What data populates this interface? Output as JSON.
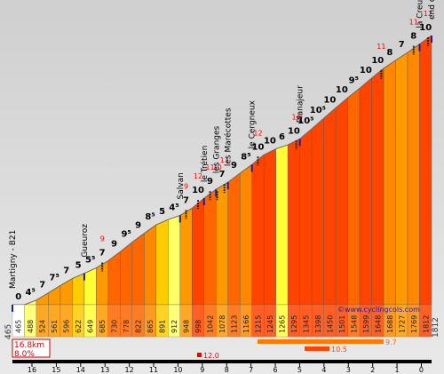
{
  "chart_data": {
    "type": "bar",
    "title": "",
    "xlabel": "",
    "ylabel": "",
    "x_axis": {
      "ticks": [
        "16",
        "15",
        "14",
        "13",
        "12",
        "11",
        "10",
        "9",
        "8",
        "7",
        "6",
        "5",
        "4",
        "3",
        "2",
        "1",
        "0"
      ],
      "direction": "descending"
    },
    "y_range_m": [
      465,
      1812
    ],
    "start_altitude": "465",
    "end_altitude": "1812",
    "stats": {
      "distance": "16.8km",
      "avg_gradient": "8.0%"
    },
    "credit": "©www.cyclingcols.com",
    "segments": [
      {
        "km": 0,
        "altitude": 465,
        "gradient": "0",
        "color": "#ffffff"
      },
      {
        "km": 1,
        "altitude": 488,
        "gradient": "4⁵",
        "color": "#ffff66"
      },
      {
        "km": 2,
        "altitude": 524,
        "gradient": "7",
        "color": "#ff9900"
      },
      {
        "km": 3,
        "altitude": 561,
        "gradient": "7⁵",
        "color": "#ff9900"
      },
      {
        "km": 4,
        "altitude": 596,
        "gradient": "7",
        "color": "#ff9900"
      },
      {
        "km": 5,
        "altitude": 622,
        "gradient": "5",
        "color": "#ffcc00"
      },
      {
        "km": 6,
        "altitude": 649,
        "gradient": "5⁵",
        "color": "#ffff33"
      },
      {
        "km": 7,
        "altitude": 685,
        "gradient": "7",
        "color": "#ff9900"
      },
      {
        "km": 8,
        "altitude": 730,
        "gradient": "9",
        "color": "#ff6600"
      },
      {
        "km": 9,
        "altitude": 778,
        "gradient": "9⁵",
        "color": "#ff6600"
      },
      {
        "km": 10,
        "altitude": 822,
        "gradient": "9",
        "color": "#ff6600"
      },
      {
        "km": 11,
        "altitude": 865,
        "gradient": "8⁵",
        "color": "#ff8800"
      },
      {
        "km": 12,
        "altitude": 891,
        "gradient": "5",
        "color": "#ffcc00"
      },
      {
        "km": 13,
        "altitude": 912,
        "gradient": "4⁵",
        "color": "#ffff66"
      },
      {
        "km": 14,
        "altitude": 948,
        "gradient": "7",
        "color": "#ff9900"
      },
      {
        "km": 15,
        "altitude": 998,
        "gradient": "10",
        "color": "#ff4400"
      },
      {
        "km": 16,
        "altitude": 1042,
        "gradient": "9",
        "color": "#ff6600"
      },
      {
        "km": 17,
        "altitude": 1078,
        "gradient": "7",
        "color": "#ff9900"
      },
      {
        "km": 18,
        "altitude": 1123,
        "gradient": "9",
        "color": "#ff6600"
      },
      {
        "km": 19,
        "altitude": 1166,
        "gradient": "8⁵",
        "color": "#ff8800"
      },
      {
        "km": 20,
        "altitude": 1215,
        "gradient": "10",
        "color": "#ff4400"
      },
      {
        "km": 21,
        "altitude": 1245,
        "gradient": "10",
        "color": "#ff4400"
      },
      {
        "km": 22,
        "altitude": 1265,
        "gradient": "6",
        "color": "#ffff33"
      },
      {
        "km": 23,
        "altitude": 1295,
        "gradient": "10",
        "color": "#ff4400"
      },
      {
        "km": 24,
        "altitude": 1345,
        "gradient": "10⁵",
        "color": "#ff4400"
      },
      {
        "km": 25,
        "altitude": 1398,
        "gradient": "10⁵",
        "color": "#ff4400"
      },
      {
        "km": 26,
        "altitude": 1450,
        "gradient": "10",
        "color": "#ff4400"
      },
      {
        "km": 27,
        "altitude": 1501,
        "gradient": "10",
        "color": "#ff4400"
      },
      {
        "km": 28,
        "altitude": 1548,
        "gradient": "9⁵",
        "color": "#ff6600"
      },
      {
        "km": 29,
        "altitude": 1599,
        "gradient": "10",
        "color": "#ff4400"
      },
      {
        "km": 30,
        "altitude": 1648,
        "gradient": "10",
        "color": "#ff4400"
      },
      {
        "km": 31,
        "altitude": 1688,
        "gradient": "8",
        "color": "#ff8800"
      },
      {
        "km": 32,
        "altitude": 1727,
        "gradient": "7",
        "color": "#ff9900"
      },
      {
        "km": 33,
        "altitude": 1769,
        "gradient": "8",
        "color": "#ff8800"
      },
      {
        "km": 34,
        "altitude": 1812,
        "gradient": "10",
        "color": "#ff4400"
      }
    ],
    "places": [
      {
        "name": "Martigny - B21",
        "segment": 0
      },
      {
        "name": "Gueuroz",
        "segment": 6
      },
      {
        "name": "Salvan",
        "segment": 14
      },
      {
        "name": "le Trétien",
        "segment": 16
      },
      {
        "name": "les Granges",
        "segment": 17
      },
      {
        "name": "les Marécottes",
        "segment": 18
      },
      {
        "name": "le Cergneux",
        "segment": 20
      },
      {
        "name": "Planajeur",
        "segment": 24
      },
      {
        "name": "la Creusaz",
        "segment": 34
      },
      {
        "name": "end of pavement",
        "segment": 35
      }
    ],
    "max_gradients": [
      {
        "label": "9",
        "segment": 7
      },
      {
        "label": "9",
        "segment": 14
      },
      {
        "label": "12",
        "segment": 15
      },
      {
        "label": "11",
        "segment": 16
      },
      {
        "label": "10",
        "segment": 16.6
      },
      {
        "label": "11",
        "segment": 17.2
      },
      {
        "label": "12",
        "segment": 20
      },
      {
        "label": "14",
        "segment": 23.2
      },
      {
        "label": "11",
        "segment": 30.3
      },
      {
        "label": "11",
        "segment": 33
      },
      {
        "label": "12",
        "segment": 34.2
      }
    ],
    "gradient_bars": [
      {
        "label": "9.7",
        "color": "#ff6600"
      },
      {
        "label": "10.5",
        "color": "#ff4400"
      },
      {
        "label": "12.0",
        "color": "#ee0000"
      }
    ]
  }
}
